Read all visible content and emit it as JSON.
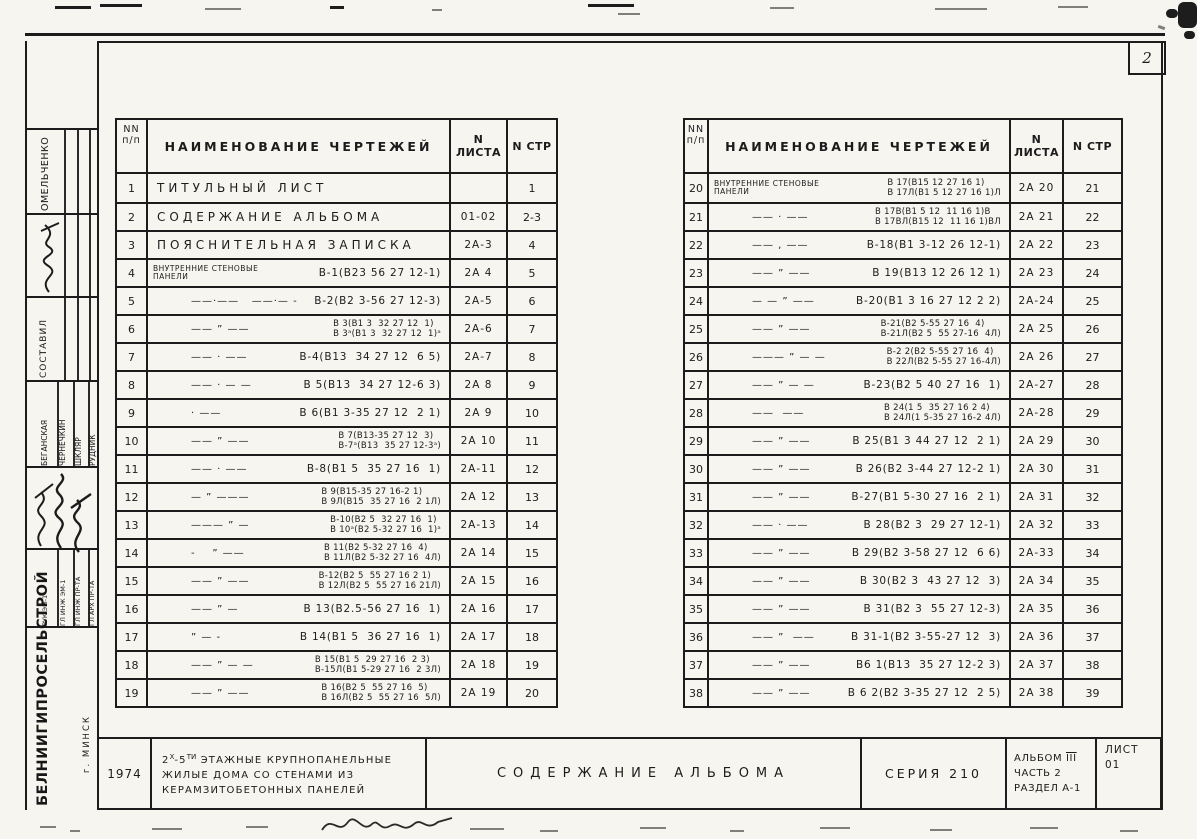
{
  "page": {
    "corner_page_number": "2",
    "year": "1974"
  },
  "table_header": {
    "num_line1": "NN",
    "num_line2": "п/п",
    "name": "НАИМЕНОВАНИЕ ЧЕРТЕЖЕЙ",
    "sheet": "N ЛИСТА",
    "page": "N СТР"
  },
  "left_table": {
    "rows": [
      {
        "num": "1",
        "kind": "plain",
        "ditto": "",
        "name": "ТИТУЛЬНЫЙ  ЛИСТ",
        "name2": "",
        "sheet": "",
        "page": "1"
      },
      {
        "num": "2",
        "kind": "plain",
        "ditto": "",
        "name": "СОДЕРЖАНИЕ  АЛЬБОМА",
        "name2": "",
        "sheet": "01-02",
        "page": "2-3"
      },
      {
        "num": "3",
        "kind": "plain",
        "ditto": "",
        "name": "ПОЯСНИТЕЛЬНАЯ  ЗАПИСКА",
        "name2": "",
        "sheet": "2А-3",
        "page": "4"
      },
      {
        "num": "4",
        "prefix1": "ВНУТРЕННИЕ СТЕНОВЫЕ",
        "prefix2": "ПАНЕЛИ",
        "ditto": "",
        "name": "В-1(В23 56 27 12-1)",
        "name2": "",
        "sheet": "2А 4",
        "page": "5"
      },
      {
        "num": "5",
        "ditto": "——·——   ——·— -",
        "name": "В-2(В2 3-56 27 12-3)",
        "name2": "",
        "sheet": "2А-5",
        "page": "6"
      },
      {
        "num": "6",
        "ditto": "—— ” ——",
        "name": "В 3(В1 3  32 27 12  1)",
        "name2": "В 3ᵃ(В1 3  32 27 12  1)ᵃ",
        "sheet": "2А-6",
        "page": "7"
      },
      {
        "num": "7",
        "ditto": "—— · ——",
        "name": "В-4(В13  34 27 12  6 5)",
        "name2": "",
        "sheet": "2А-7",
        "page": "8"
      },
      {
        "num": "8",
        "ditto": "—— · — —",
        "name": "В 5(В13  34 27 12-6 3)",
        "name2": "",
        "sheet": "2А 8",
        "page": "9"
      },
      {
        "num": "9",
        "ditto": "· ——",
        "name": "В 6(В1 3-35 27 12  2 1)",
        "name2": "",
        "sheet": "2А 9",
        "page": "10"
      },
      {
        "num": "10",
        "ditto": "—— ” ——",
        "name": "В 7(В13-35 27 12  3)",
        "name2": "В-7ᵃ(В13  35 27 12-3ᵃ)",
        "sheet": "2А 10",
        "page": "11"
      },
      {
        "num": "11",
        "ditto": "—— · ——",
        "name": "В-8(В1 5  35 27 16  1)",
        "name2": "",
        "sheet": "2А-11",
        "page": "12"
      },
      {
        "num": "12",
        "ditto": "— ” ———",
        "name": "В 9(В15-35 27 16-2 1)",
        "name2": "В 9Л(В15  35 27 16  2 1Л)",
        "sheet": "2А 12",
        "page": "13"
      },
      {
        "num": "13",
        "ditto": "——— ” —",
        "name": "В-10(В2 5  32 27 16  1)",
        "name2": "В 10ᵃ(В2 5-32 27 16  1)ᵃ",
        "sheet": "2А-13",
        "page": "14"
      },
      {
        "num": "14",
        "ditto": "-    ” ——",
        "name": "В 11(В2 5-32 27 16  4)",
        "name2": "В 11Л(В2 5-32 27 16  4Л)",
        "sheet": "2А 14",
        "page": "15"
      },
      {
        "num": "15",
        "ditto": "—— ” ——",
        "name": "В-12(В2 5  55 27 16 2 1)",
        "name2": "В 12Л(В2 5  55 27 16 21Л)",
        "sheet": "2А 15",
        "page": "16"
      },
      {
        "num": "16",
        "ditto": "—— ” —",
        "name": "В 13(В2.5-56 27 16  1)",
        "name2": "",
        "sheet": "2А 16",
        "page": "17"
      },
      {
        "num": "17",
        "ditto": "” — -",
        "name": "В 14(В1 5  36 27 16  1)",
        "name2": "",
        "sheet": "2А 17",
        "page": "18"
      },
      {
        "num": "18",
        "ditto": "—— ” — —",
        "name": "В 15(В1 5  29 27 16  2 3)",
        "name2": "В-15Л(В1 5-29 27 16  2 3Л)",
        "sheet": "2А 18",
        "page": "19"
      },
      {
        "num": "19",
        "ditto": "—— ” ——",
        "name": "В 16(В2 5  55 27 16  5)",
        "name2": "В 16Л(В2 5  55 27 16  5Л)",
        "sheet": "2А 19",
        "page": "20"
      }
    ]
  },
  "right_table": {
    "rows": [
      {
        "num": "20",
        "prefix1": "ВНУТРЕННИЕ СТЕНОВЫЕ",
        "prefix2": "ПАНЕЛИ",
        "ditto": "",
        "name": "В 17(В15 12 27 16 1)",
        "name2": "В 17Л(В1 5 12 27 16 1)Л",
        "sheet": "2А 20",
        "page": "21"
      },
      {
        "num": "21",
        "ditto": "—— · ——",
        "name": "В 17В(В1 5 12  11 16 1)В",
        "name2": "В 17ВЛ(В15 12  11 16 1)ВЛ",
        "sheet": "2А 21",
        "page": "22"
      },
      {
        "num": "22",
        "ditto": "—— , ——",
        "name": "В-18(В1 3-12 26 12-1)",
        "name2": "",
        "sheet": "2А 22",
        "page": "23"
      },
      {
        "num": "23",
        "ditto": "—— ” ——",
        "name": "В 19(В13 12 26 12 1)",
        "name2": "",
        "sheet": "2А 23",
        "page": "24"
      },
      {
        "num": "24",
        "ditto": "— — ” ——",
        "name": "В-20(В1 3 16 27 12 2 2)",
        "name2": "",
        "sheet": "2А-24",
        "page": "25"
      },
      {
        "num": "25",
        "ditto": "—— ” ——",
        "name": "В-21(В2 5-55 27 16  4)",
        "name2": "В-21Л(В2 5  55 27-16  4Л)",
        "sheet": "2А 25",
        "page": "26"
      },
      {
        "num": "26",
        "ditto": "——— ” — —",
        "name": "В-2 2(В2 5-55 27 16  4)",
        "name2": "В 22Л(В2 5-55 27 16-4Л)",
        "sheet": "2А 26",
        "page": "27"
      },
      {
        "num": "27",
        "ditto": "—— ” — —",
        "name": "В-23(В2 5 40 27 16  1)",
        "name2": "",
        "sheet": "2А-27",
        "page": "28"
      },
      {
        "num": "28",
        "ditto": "——  ——",
        "name": "В 24(1 5  35 27 16 2 4)",
        "name2": "В 24Л(1 5-35 27 16-2 4Л)",
        "sheet": "2А-28",
        "page": "29"
      },
      {
        "num": "29",
        "ditto": "—— ” ——",
        "name": "В 25(В1 3 44 27 12  2 1)",
        "name2": "",
        "sheet": "2А 29",
        "page": "30"
      },
      {
        "num": "30",
        "ditto": "—— ” ——",
        "name": "В 26(В2 3-44 27 12-2 1)",
        "name2": "",
        "sheet": "2А 30",
        "page": "31"
      },
      {
        "num": "31",
        "ditto": "—— ” ——",
        "name": "В-27(В1 5-30 27 16  2 1)",
        "name2": "",
        "sheet": "2А 31",
        "page": "32"
      },
      {
        "num": "32",
        "ditto": "—— · ——",
        "name": "В 28(В2 3  29 27 12-1)",
        "name2": "",
        "sheet": "2А 32",
        "page": "33"
      },
      {
        "num": "33",
        "ditto": "—— ” ——",
        "name": "В 29(В2 3-58 27 12  6 6)",
        "name2": "",
        "sheet": "2А-33",
        "page": "34"
      },
      {
        "num": "34",
        "ditto": "—— ” ——",
        "name": "В 30(В2 3  43 27 12  3)",
        "name2": "",
        "sheet": "2А 34",
        "page": "35"
      },
      {
        "num": "35",
        "ditto": "—— ” ——",
        "name": "В 31(В2 3  55 27 12-3)",
        "name2": "",
        "sheet": "2А 35",
        "page": "36"
      },
      {
        "num": "36",
        "ditto": "—— ”  ——",
        "name": "В 31-1(В2 3-55-27 12  3)",
        "name2": "",
        "sheet": "2А 36",
        "page": "37"
      },
      {
        "num": "37",
        "ditto": "—— ” ——",
        "name": "В6 1(В13  35 27 12-2 3)",
        "name2": "",
        "sheet": "2А 37",
        "page": "38"
      },
      {
        "num": "38",
        "ditto": "—— ” ——",
        "name": "В 6 2(В2 3-35 27 12  2 5)",
        "name2": "",
        "sheet": "2А 38",
        "page": "39"
      }
    ]
  },
  "title_block": {
    "year": "1974",
    "project": {
      "l1a": "2",
      "l1a_sup": "Х",
      "l1b": "-5",
      "l1b_sup": "ТИ",
      "l1c": " ЭТАЖНЫЕ КРУПНОПАНЕЛЬНЫЕ",
      "line2": "ЖИЛЫЕ ДОМА СО СТЕНАМИ ИЗ",
      "line3": "КЕРАМЗИТОБЕТОННЫХ ПАНЕЛЕЙ"
    },
    "content_title": "СОДЕРЖАНИЕ АЛЬБОМА",
    "series": "СЕРИЯ 210",
    "album_label": "АЛЬБОМ",
    "album_roman": "III",
    "album_line2": "ЧАСТЬ 2",
    "album_line3": "РАЗДЕЛ А-1",
    "sheet_label": "ЛИСТ",
    "sheet_number": "01"
  },
  "sidebar": {
    "compiler_name": "ОМЕЛЬЧЕНКО",
    "compiler_role": "СОСТАВИЛ",
    "approvers": [
      {
        "name": "БЕГАНСКАЯ",
        "role": "РУК ЭМ-1"
      },
      {
        "name": "ЧЕРНЕЧКИН",
        "role": "ГЛ ИНЖ ЭМ-1"
      },
      {
        "name": "ШКЛЯР",
        "role": "ГЛ ИНЖ ПР-ТА"
      },
      {
        "name": "РУДНИК",
        "role": "ГЛ АРХ ПР-ТА"
      }
    ],
    "organization": "БЕЛНИИГИПРОСЕЛЬСТРОЙ",
    "city": "г. МИНСК"
  }
}
